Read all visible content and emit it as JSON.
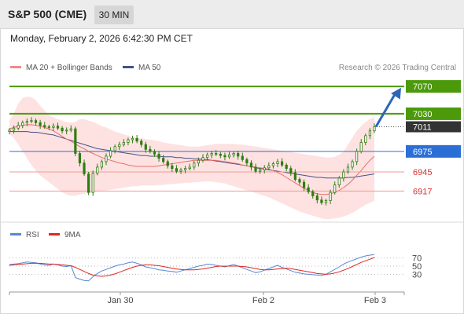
{
  "header": {
    "title": "S&P 500 (CME)",
    "timeframe": "30 MIN"
  },
  "timestamp": "Monday, February 2, 2026 6:42:30 PM CET",
  "legend": {
    "bb_label": "MA 20 + Bollinger Bands",
    "ma50_label": "MA 50",
    "credit": "Research © 2026 Trading Central",
    "rsi_label": "RSI",
    "rsi_ma_label": "9MA"
  },
  "colors": {
    "green": "#4c9a0c",
    "blue": "#2b6fd6",
    "red": "#d9302c",
    "dark": "#333333",
    "candle": "#2f7d12",
    "bb_fill": "#fde0df",
    "ma20": "#e8706a",
    "ma50": "#45508c",
    "rsi": "#5a86d6",
    "rsi_ma": "#e0261f",
    "arrow": "#2c66b8"
  },
  "chart_data": [
    {
      "type": "candlestick",
      "title": "",
      "x_tick_labels": [
        "Jan 30",
        "Feb 2",
        "Feb 3"
      ],
      "ylim": [
        6875,
        7085
      ],
      "levels": [
        {
          "value": 7070,
          "label": "7070",
          "kind": "resistance",
          "color": "#4c9a0c"
        },
        {
          "value": 7030,
          "label": "7030",
          "kind": "resistance",
          "color": "#4c9a0c"
        },
        {
          "value": 7011,
          "label": "7011",
          "kind": "last",
          "color": "#333333"
        },
        {
          "value": 6975,
          "label": "6975",
          "kind": "pivot",
          "color": "#2b6fd6"
        },
        {
          "value": 6945,
          "label": "6945",
          "kind": "support",
          "color": "#d9302c"
        },
        {
          "value": 6917,
          "label": "6917",
          "kind": "support",
          "color": "#d9302c"
        }
      ],
      "arrow": {
        "from_value": 7011,
        "to_value": 7068
      },
      "close": [
        7006,
        7009,
        7013,
        7017,
        7019,
        7020,
        7017,
        7013,
        7011,
        7010,
        7012,
        7009,
        7005,
        7006,
        7008,
        6972,
        6958,
        6942,
        6915,
        6943,
        6952,
        6960,
        6968,
        6976,
        6982,
        6985,
        6988,
        6992,
        6994,
        6990,
        6985,
        6978,
        6975,
        6971,
        6965,
        6960,
        6954,
        6950,
        6946,
        6948,
        6950,
        6952,
        6958,
        6962,
        6966,
        6970,
        6972,
        6971,
        6969,
        6967,
        6970,
        6972,
        6968,
        6963,
        6958,
        6952,
        6946,
        6948,
        6951,
        6954,
        6957,
        6960,
        6955,
        6950,
        6944,
        6934,
        6930,
        6922,
        6916,
        6910,
        6904,
        6900,
        6903,
        6915,
        6926,
        6936,
        6945,
        6952,
        6960,
        6975,
        6988,
        6998,
        7005,
        7011
      ],
      "ma20": [
        7008,
        7010,
        7012,
        7013,
        7014,
        7014,
        7013,
        7012,
        7010,
        7008,
        7005,
        7001,
        6997,
        6993,
        6990,
        6986,
        6982,
        6979,
        6975,
        6972,
        6969,
        6966,
        6964,
        6962,
        6960,
        6958,
        6957,
        6955,
        6954,
        6953,
        6953,
        6953,
        6953,
        6953,
        6954,
        6955,
        6956,
        6957,
        6958,
        6959,
        6960,
        6961,
        6962,
        6962,
        6962,
        6962,
        6962,
        6962,
        6961,
        6960,
        6959,
        6958,
        6957,
        6955,
        6954,
        6953,
        6952,
        6951,
        6950,
        6949,
        6947,
        6944,
        6941,
        6937,
        6933,
        6929,
        6925,
        6921,
        6918,
        6915,
        6913,
        6912,
        6912,
        6913,
        6915,
        6918,
        6922,
        6927,
        6933,
        6940,
        6947,
        6955,
        6962,
        6968
      ],
      "ma50": [
        7004,
        7004,
        7004,
        7004,
        7004,
        7003,
        7003,
        7002,
        7001,
        7000,
        6999,
        6997,
        6995,
        6993,
        6991,
        6989,
        6987,
        6985,
        6983,
        6981,
        6979,
        6978,
        6977,
        6976,
        6975,
        6974,
        6973,
        6972,
        6971,
        6970,
        6969,
        6969,
        6968,
        6968,
        6968,
        6967,
        6967,
        6967,
        6966,
        6966,
        6965,
        6965,
        6964,
        6964,
        6963,
        6963,
        6962,
        6961,
        6960,
        6959,
        6958,
        6957,
        6956,
        6955,
        6954,
        6953,
        6951,
        6950,
        6949,
        6948,
        6947,
        6946,
        6945,
        6944,
        6943,
        6942,
        6941,
        6940,
        6939,
        6938,
        6937,
        6937,
        6936,
        6936,
        6936,
        6936,
        6936,
        6937,
        6937,
        6938,
        6939,
        6940,
        6941,
        6942
      ],
      "bb_upper": [
        7020,
        7030,
        7045,
        7053,
        7055,
        7054,
        7050,
        7042,
        7035,
        7028,
        7025,
        7022,
        7020,
        7018,
        7017,
        7018,
        7022,
        7022,
        7020,
        7018,
        7015,
        7012,
        7010,
        7007,
        7004,
        7002,
        7000,
        6998,
        6996,
        6995,
        6994,
        6993,
        6992,
        6991,
        6990,
        6988,
        6987,
        6986,
        6985,
        6984,
        6983,
        6982,
        6982,
        6982,
        6983,
        6984,
        6985,
        6986,
        6986,
        6986,
        6986,
        6986,
        6985,
        6985,
        6984,
        6983,
        6982,
        6981,
        6980,
        6979,
        6978,
        6977,
        6976,
        6975,
        6974,
        6973,
        6972,
        6971,
        6970,
        6969,
        6968,
        6967,
        6966,
        6966,
        6967,
        6970,
        6975,
        6985,
        6995,
        7005,
        7012,
        7018,
        7022,
        7025
      ],
      "bb_lower": [
        7000,
        6995,
        6985,
        6975,
        6965,
        6955,
        6947,
        6940,
        6935,
        6930,
        6925,
        6920,
        6915,
        6912,
        6910,
        6910,
        6912,
        6913,
        6914,
        6915,
        6916,
        6917,
        6918,
        6919,
        6920,
        6921,
        6922,
        6923,
        6924,
        6924,
        6925,
        6925,
        6925,
        6925,
        6926,
        6926,
        6927,
        6927,
        6928,
        6928,
        6929,
        6929,
        6930,
        6930,
        6931,
        6931,
        6931,
        6930,
        6929,
        6928,
        6926,
        6924,
        6922,
        6920,
        6918,
        6916,
        6914,
        6912,
        6910,
        6908,
        6905,
        6902,
        6899,
        6896,
        6893,
        6890,
        6887,
        6885,
        6883,
        6881,
        6879,
        6877,
        6876,
        6876,
        6877,
        6878,
        6880,
        6882,
        6885,
        6889,
        6893,
        6897,
        6900,
        6903
      ]
    },
    {
      "type": "line",
      "title": "",
      "ylim": [
        0,
        100
      ],
      "y_tick_labels": [
        "70",
        "50",
        "30"
      ],
      "y_ticks": [
        70,
        50,
        30
      ],
      "series": [
        {
          "name": "RSI",
          "values": [
            54,
            55,
            56,
            58,
            60,
            59,
            58,
            55,
            53,
            52,
            55,
            53,
            50,
            49,
            51,
            22,
            18,
            15,
            14,
            24,
            32,
            38,
            42,
            46,
            50,
            53,
            55,
            58,
            60,
            57,
            53,
            48,
            46,
            44,
            41,
            40,
            38,
            37,
            35,
            38,
            41,
            44,
            47,
            50,
            52,
            55,
            54,
            52,
            50,
            48,
            51,
            54,
            50,
            46,
            42,
            38,
            34,
            36,
            40,
            44,
            48,
            52,
            47,
            43,
            39,
            35,
            33,
            31,
            30,
            29,
            28,
            27,
            30,
            36,
            42,
            48,
            55,
            60,
            64,
            68,
            72,
            75,
            77,
            78
          ]
        },
        {
          "name": "9MA",
          "values": [
            52,
            53,
            54,
            55,
            56,
            57,
            57,
            57,
            56,
            55,
            55,
            54,
            53,
            52,
            51,
            47,
            42,
            37,
            32,
            28,
            26,
            25,
            26,
            28,
            31,
            35,
            39,
            43,
            47,
            50,
            52,
            53,
            53,
            52,
            51,
            49,
            47,
            45,
            43,
            42,
            41,
            41,
            41,
            42,
            43,
            45,
            47,
            49,
            50,
            50,
            50,
            50,
            50,
            49,
            48,
            46,
            44,
            42,
            41,
            41,
            42,
            43,
            44,
            45,
            44,
            42,
            40,
            38,
            36,
            34,
            32,
            31,
            30,
            31,
            33,
            36,
            40,
            44,
            49,
            54,
            59,
            63,
            67,
            71
          ]
        }
      ]
    }
  ]
}
